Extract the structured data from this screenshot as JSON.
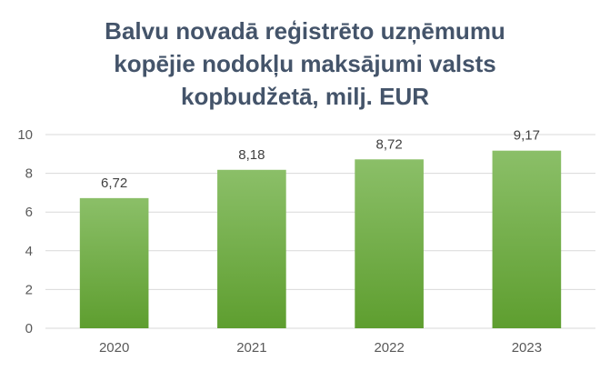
{
  "chart_data": {
    "type": "bar",
    "title_lines": [
      "Balvu novadā reģistrēto uzņēmumu",
      "kopējie nodokļu maksājumi valsts",
      "kopbudžetā, milj. EUR"
    ],
    "categories": [
      "2020",
      "2021",
      "2022",
      "2023"
    ],
    "values": [
      6.72,
      8.18,
      8.72,
      9.17
    ],
    "data_labels": [
      "6,72",
      "8,18",
      "8,72",
      "9,17"
    ],
    "yticks": [
      "0",
      "2",
      "4",
      "6",
      "8",
      "10"
    ],
    "ylim": [
      0,
      10
    ],
    "xlabel": "",
    "ylabel": "",
    "grid": true,
    "legend": "none",
    "colors": {
      "bar_top": "#8BBF68",
      "bar_bottom": "#5E9E2F",
      "grid": "#D9D9D9",
      "title": "#44546A"
    }
  }
}
